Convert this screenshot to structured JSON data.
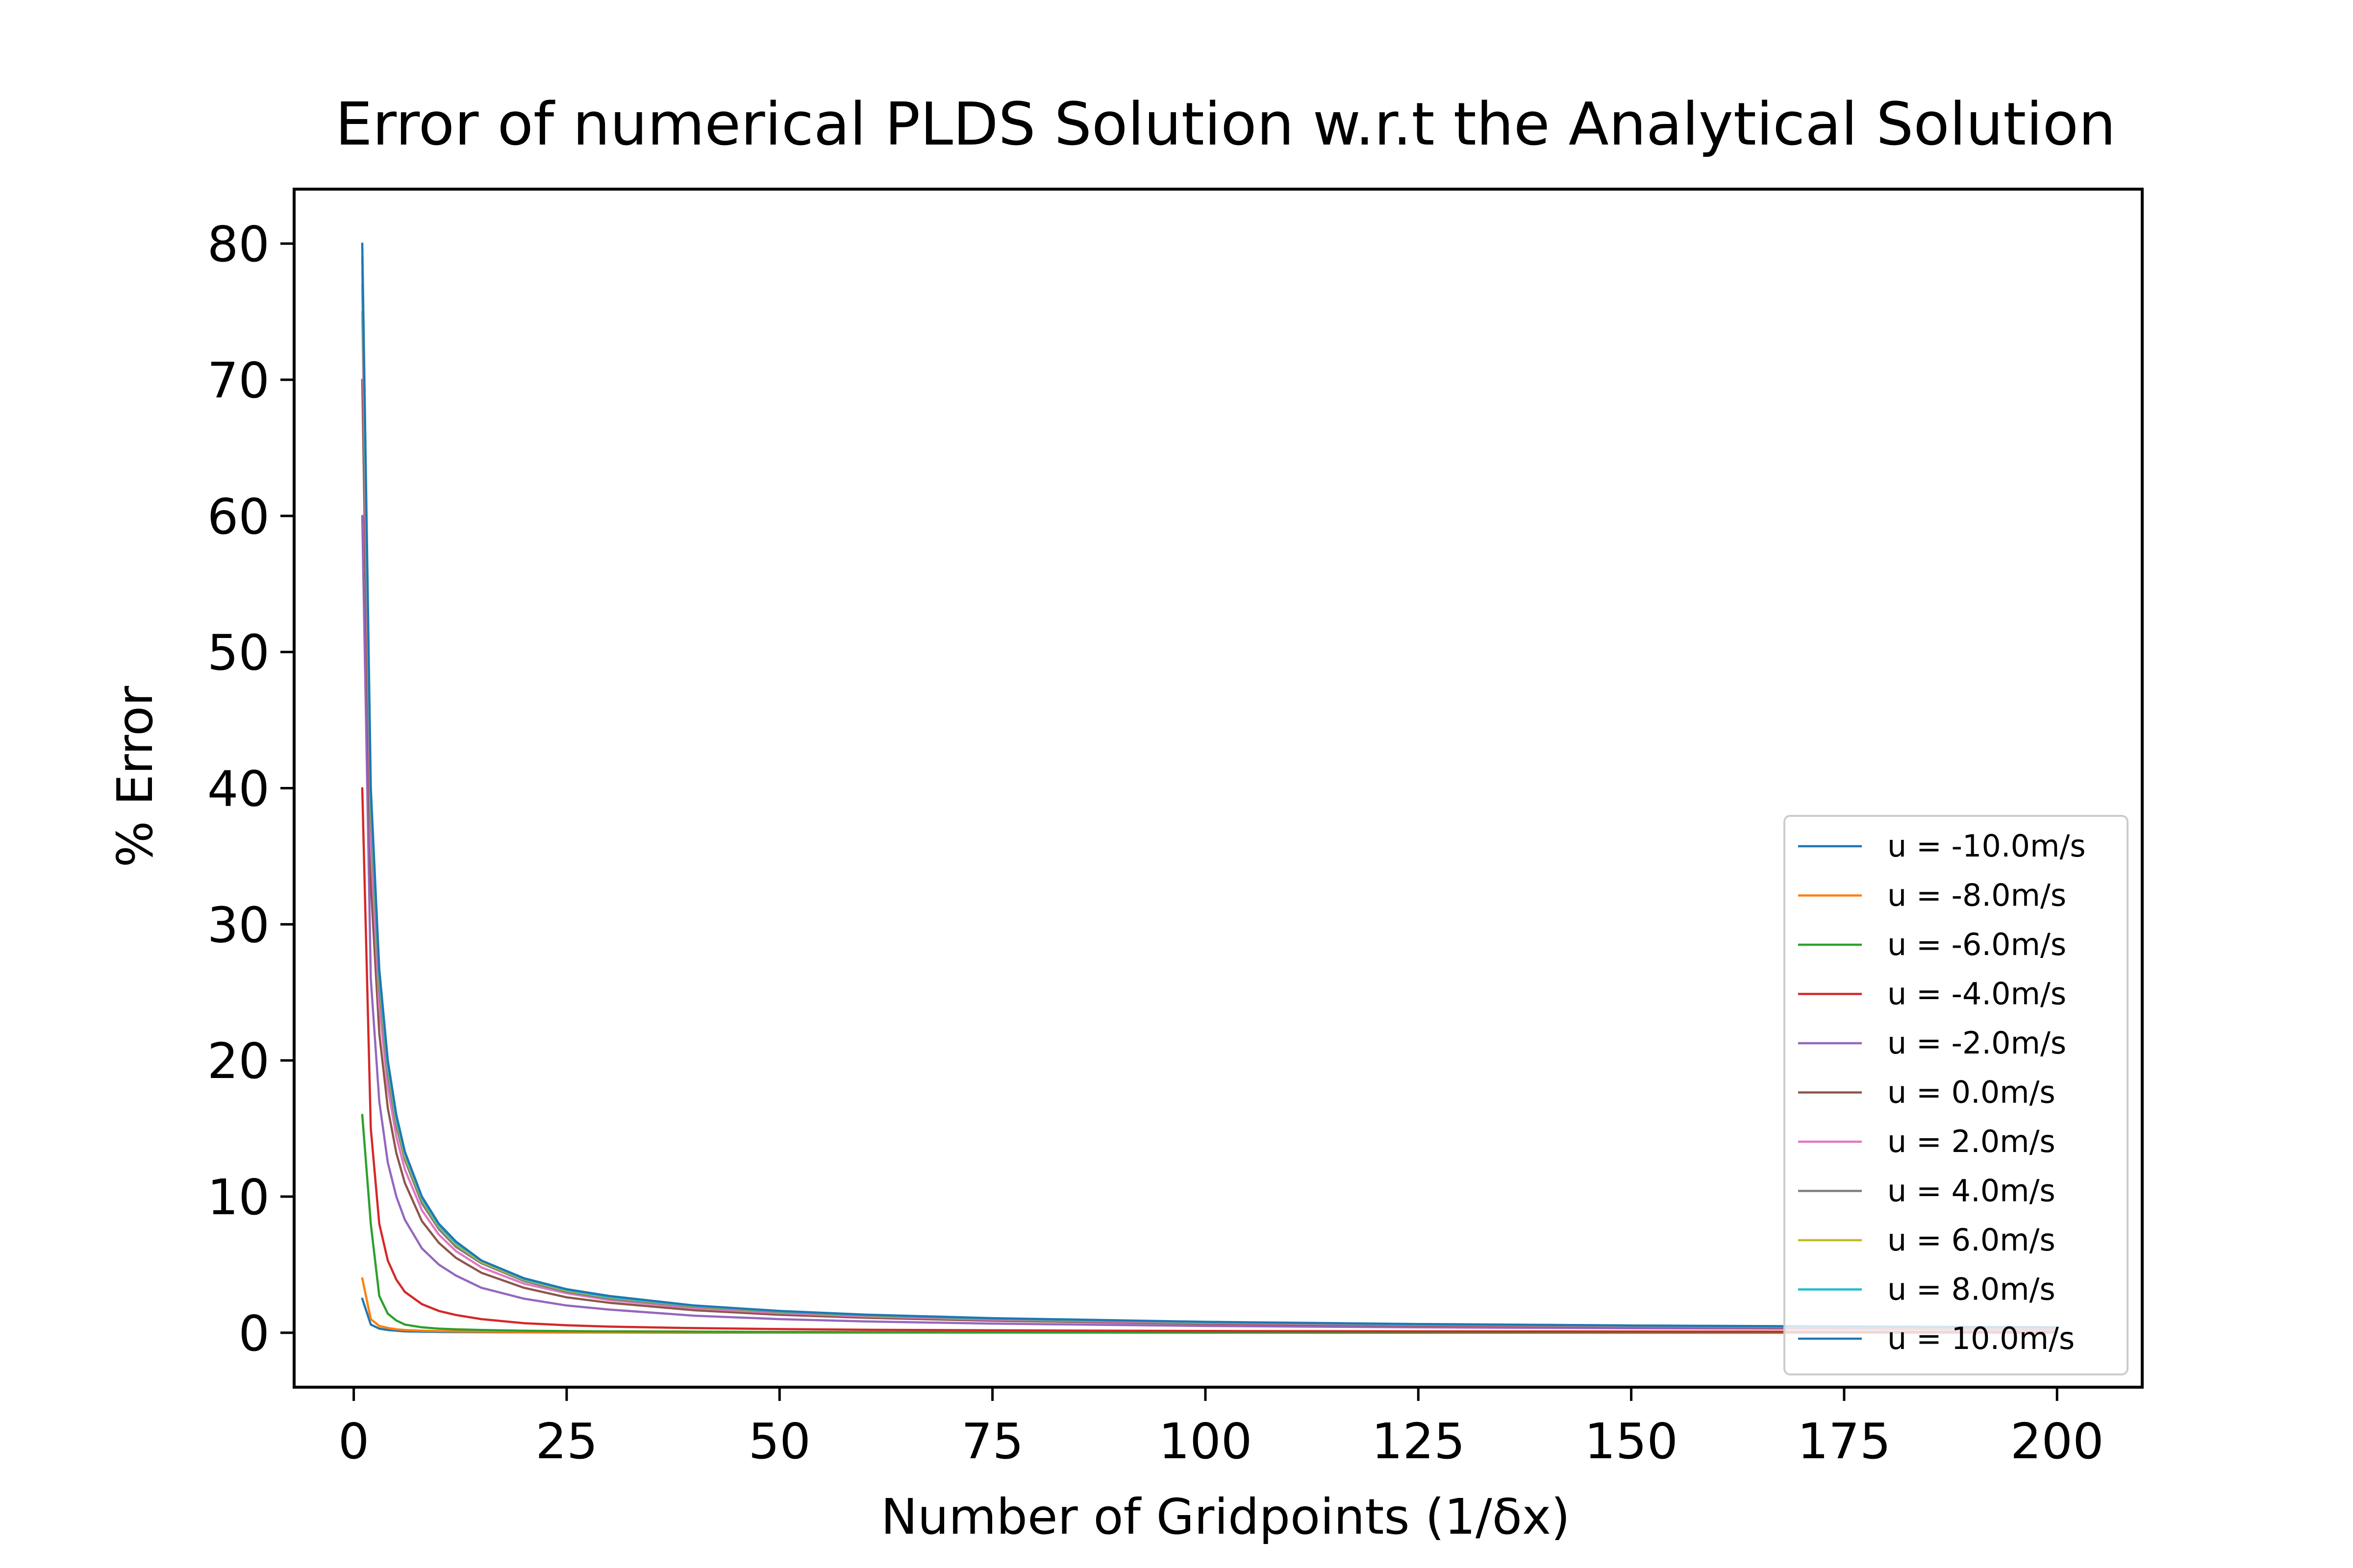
{
  "chart_data": {
    "type": "line",
    "title": "Error of numerical PLDS Solution w.r.t the Analytical Solution",
    "xlabel": "Number of Gridpoints (1/δx)",
    "ylabel": "% Error",
    "xlim": [
      -7,
      210
    ],
    "ylim": [
      -4,
      84
    ],
    "xticks": [
      0,
      25,
      50,
      75,
      100,
      125,
      150,
      175,
      200
    ],
    "xtick_labels": [
      "0",
      "25",
      "50",
      "75",
      "100",
      "125",
      "150",
      "175",
      "200"
    ],
    "yticks": [
      0,
      10,
      20,
      30,
      40,
      50,
      60,
      70,
      80
    ],
    "ytick_labels": [
      "0",
      "10",
      "20",
      "30",
      "40",
      "50",
      "60",
      "70",
      "80"
    ],
    "grid": false,
    "legend_position": "lower-right",
    "x": [
      1,
      2,
      3,
      4,
      5,
      6,
      8,
      10,
      12,
      15,
      20,
      25,
      30,
      40,
      50,
      60,
      75,
      100,
      125,
      150,
      175,
      200
    ],
    "series": [
      {
        "name": "u = -10.0m/s",
        "color": "#1f77b4",
        "values": [
          2.5,
          0.6,
          0.3,
          0.2,
          0.15,
          0.1,
          0.08,
          0.06,
          0.05,
          0.04,
          0.03,
          0.02,
          0.02,
          0.01,
          0.01,
          0.01,
          0.01,
          0.0,
          0.0,
          0.0,
          0.0,
          0.0
        ]
      },
      {
        "name": "u = -8.0m/s",
        "color": "#ff7f0e",
        "values": [
          4.0,
          1.0,
          0.5,
          0.35,
          0.25,
          0.2,
          0.15,
          0.12,
          0.1,
          0.08,
          0.06,
          0.05,
          0.04,
          0.03,
          0.02,
          0.02,
          0.01,
          0.01,
          0.01,
          0.0,
          0.0,
          0.0
        ]
      },
      {
        "name": "u = -6.0m/s",
        "color": "#2ca02c",
        "values": [
          16.0,
          8.0,
          2.7,
          1.4,
          0.9,
          0.6,
          0.4,
          0.3,
          0.25,
          0.2,
          0.15,
          0.12,
          0.1,
          0.08,
          0.06,
          0.05,
          0.04,
          0.03,
          0.02,
          0.02,
          0.02,
          0.01
        ]
      },
      {
        "name": "u = -4.0m/s",
        "color": "#d62728",
        "values": [
          40.0,
          15.0,
          8.0,
          5.3,
          3.9,
          3.0,
          2.1,
          1.6,
          1.3,
          1.0,
          0.7,
          0.55,
          0.45,
          0.34,
          0.27,
          0.22,
          0.18,
          0.13,
          0.1,
          0.09,
          0.08,
          0.07
        ]
      },
      {
        "name": "u = -2.0m/s",
        "color": "#9467bd",
        "values": [
          60.0,
          26.0,
          17.0,
          12.5,
          10.0,
          8.3,
          6.2,
          5.0,
          4.2,
          3.3,
          2.5,
          2.0,
          1.7,
          1.25,
          1.0,
          0.83,
          0.67,
          0.5,
          0.4,
          0.33,
          0.29,
          0.25
        ]
      },
      {
        "name": "u = 0.0m/s",
        "color": "#8c564b",
        "values": [
          70.0,
          33.0,
          22.0,
          16.5,
          13.2,
          11.0,
          8.2,
          6.6,
          5.5,
          4.4,
          3.3,
          2.6,
          2.2,
          1.65,
          1.32,
          1.1,
          0.88,
          0.66,
          0.53,
          0.44,
          0.38,
          0.33
        ]
      },
      {
        "name": "u = 2.0m/s",
        "color": "#e377c2",
        "values": [
          75.0,
          36.0,
          24.0,
          18.0,
          14.4,
          12.0,
          9.0,
          7.2,
          6.0,
          4.8,
          3.6,
          2.9,
          2.4,
          1.8,
          1.45,
          1.2,
          0.96,
          0.72,
          0.58,
          0.48,
          0.41,
          0.36
        ]
      },
      {
        "name": "u = 4.0m/s",
        "color": "#7f7f7f",
        "values": [
          77.0,
          38.0,
          25.3,
          19.0,
          15.2,
          12.7,
          9.5,
          7.6,
          6.3,
          5.1,
          3.8,
          3.0,
          2.5,
          1.9,
          1.52,
          1.27,
          1.01,
          0.76,
          0.61,
          0.51,
          0.43,
          0.38
        ]
      },
      {
        "name": "u = 6.0m/s",
        "color": "#bcbd22",
        "values": [
          78.0,
          39.0,
          26.0,
          19.5,
          15.6,
          13.0,
          9.8,
          7.8,
          6.5,
          5.2,
          3.9,
          3.1,
          2.6,
          1.95,
          1.56,
          1.3,
          1.04,
          0.78,
          0.62,
          0.52,
          0.45,
          0.39
        ]
      },
      {
        "name": "u = 8.0m/s",
        "color": "#17becf",
        "values": [
          79.0,
          39.5,
          26.3,
          19.7,
          15.8,
          13.2,
          9.9,
          7.9,
          6.6,
          5.3,
          3.95,
          3.16,
          2.63,
          1.98,
          1.58,
          1.32,
          1.05,
          0.79,
          0.63,
          0.53,
          0.45,
          0.4
        ]
      },
      {
        "name": "u = 10.0m/s",
        "color": "#1f77b4",
        "values": [
          80.0,
          40.0,
          26.7,
          20.0,
          16.0,
          13.3,
          10.0,
          8.0,
          6.7,
          5.3,
          4.0,
          3.2,
          2.7,
          2.0,
          1.6,
          1.33,
          1.07,
          0.8,
          0.64,
          0.53,
          0.46,
          0.4
        ]
      }
    ]
  }
}
